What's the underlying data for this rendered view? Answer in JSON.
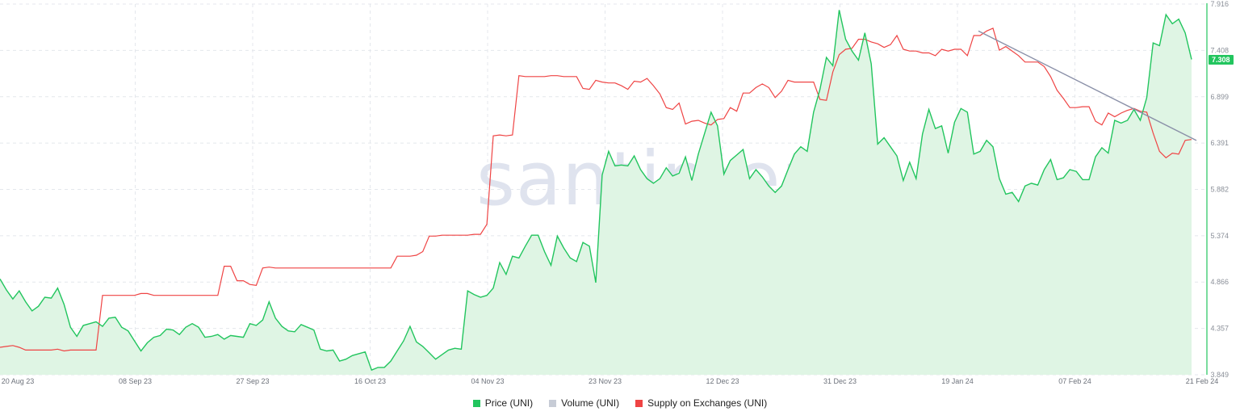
{
  "watermark": "santiment",
  "legend": [
    {
      "label": "Price (UNI)",
      "color": "#22c55e"
    },
    {
      "label": "Volume (UNI)",
      "color": "#c7ccd6"
    },
    {
      "label": "Supply on Exchanges (UNI)",
      "color": "#ef4444"
    }
  ],
  "last_price_label": "7.308",
  "chart_data": {
    "type": "line",
    "x_tick_labels": [
      "20 Aug 23",
      "08 Sep 23",
      "27 Sep 23",
      "16 Oct 23",
      "04 Nov 23",
      "23 Nov 23",
      "12 Dec 23",
      "31 Dec 23",
      "19 Jan 24",
      "07 Feb 24",
      "21 Feb 24"
    ],
    "y_tick_labels": [
      "7.916",
      "7.408",
      "6.899",
      "6.391",
      "5.882",
      "5.374",
      "4.866",
      "4.357",
      "3.849"
    ],
    "ylim": [
      3.849,
      7.916
    ],
    "grid": true,
    "legend_position": "bottom-center",
    "series": [
      {
        "name": "Price (UNI)",
        "color": "#22c55e",
        "fill": true,
        "values": [
          4.9,
          4.78,
          4.68,
          4.77,
          4.65,
          4.55,
          4.6,
          4.7,
          4.69,
          4.8,
          4.62,
          4.37,
          4.27,
          4.39,
          4.41,
          4.43,
          4.38,
          4.47,
          4.48,
          4.37,
          4.33,
          4.22,
          4.11,
          4.2,
          4.26,
          4.28,
          4.35,
          4.34,
          4.29,
          4.37,
          4.41,
          4.37,
          4.26,
          4.27,
          4.29,
          4.24,
          4.28,
          4.27,
          4.26,
          4.41,
          4.39,
          4.45,
          4.65,
          4.47,
          4.38,
          4.33,
          4.32,
          4.4,
          4.37,
          4.34,
          4.13,
          4.11,
          4.12,
          4.0,
          4.02,
          4.06,
          4.08,
          4.1,
          3.9,
          3.93,
          3.93,
          4.0,
          4.11,
          4.22,
          4.38,
          4.21,
          4.16,
          4.09,
          4.02,
          4.07,
          4.12,
          4.14,
          4.13,
          4.77,
          4.73,
          4.7,
          4.72,
          4.8,
          5.08,
          4.95,
          5.15,
          5.13,
          5.26,
          5.38,
          5.38,
          5.2,
          5.05,
          5.37,
          5.24,
          5.13,
          5.09,
          5.3,
          5.26,
          4.86,
          6.04,
          6.3,
          6.14,
          6.15,
          6.14,
          6.25,
          6.1,
          6.0,
          5.95,
          6.0,
          6.12,
          6.03,
          6.06,
          6.24,
          5.98,
          6.27,
          6.5,
          6.73,
          6.58,
          6.05,
          6.2,
          6.26,
          6.32,
          6.0,
          6.1,
          6.02,
          5.92,
          5.85,
          5.92,
          6.1,
          6.27,
          6.35,
          6.3,
          6.73,
          6.98,
          7.33,
          7.24,
          7.85,
          7.53,
          7.4,
          7.3,
          7.6,
          7.26,
          6.38,
          6.45,
          6.35,
          6.25,
          5.98,
          6.18,
          6.0,
          6.49,
          6.76,
          6.55,
          6.58,
          6.28,
          6.62,
          6.77,
          6.73,
          6.27,
          6.3,
          6.42,
          6.35,
          6.0,
          5.83,
          5.85,
          5.75,
          5.92,
          5.95,
          5.93,
          6.1,
          6.21,
          5.99,
          6.01,
          6.1,
          6.08,
          5.99,
          5.99,
          6.24,
          6.34,
          6.28,
          6.64,
          6.61,
          6.64,
          6.76,
          6.64,
          6.89,
          7.49,
          7.46,
          7.8,
          7.7,
          7.75,
          7.6,
          7.308
        ]
      },
      {
        "name": "Supply on Exchanges (UNI)",
        "color": "#ef4444",
        "fill": false,
        "values": [
          4.15,
          4.16,
          4.17,
          4.15,
          4.12,
          4.12,
          4.12,
          4.12,
          4.12,
          4.13,
          4.11,
          4.12,
          4.12,
          4.12,
          4.12,
          4.12,
          4.72,
          4.72,
          4.72,
          4.72,
          4.72,
          4.72,
          4.74,
          4.74,
          4.72,
          4.72,
          4.72,
          4.72,
          4.72,
          4.72,
          4.72,
          4.72,
          4.72,
          4.72,
          4.72,
          5.04,
          5.04,
          4.88,
          4.88,
          4.84,
          4.83,
          5.02,
          5.03,
          5.02,
          5.02,
          5.02,
          5.02,
          5.02,
          5.02,
          5.02,
          5.02,
          5.02,
          5.02,
          5.02,
          5.02,
          5.02,
          5.02,
          5.02,
          5.02,
          5.02,
          5.02,
          5.02,
          5.15,
          5.15,
          5.15,
          5.16,
          5.2,
          5.37,
          5.37,
          5.38,
          5.38,
          5.38,
          5.38,
          5.38,
          5.39,
          5.39,
          5.5,
          6.47,
          6.48,
          6.47,
          6.48,
          7.13,
          7.12,
          7.12,
          7.12,
          7.12,
          7.13,
          7.13,
          7.12,
          7.12,
          7.12,
          6.99,
          6.98,
          7.08,
          7.06,
          7.05,
          7.05,
          7.02,
          6.98,
          7.07,
          7.06,
          7.1,
          7.02,
          6.93,
          6.78,
          6.76,
          6.83,
          6.6,
          6.63,
          6.64,
          6.61,
          6.59,
          6.65,
          6.66,
          6.78,
          6.74,
          6.94,
          6.94,
          7.0,
          7.04,
          7.0,
          6.89,
          6.96,
          7.08,
          7.06,
          7.06,
          7.06,
          7.06,
          6.87,
          6.86,
          7.17,
          7.36,
          7.42,
          7.43,
          7.53,
          7.53,
          7.5,
          7.48,
          7.44,
          7.47,
          7.57,
          7.42,
          7.4,
          7.4,
          7.38,
          7.38,
          7.35,
          7.42,
          7.4,
          7.42,
          7.42,
          7.35,
          7.57,
          7.57,
          7.62,
          7.65,
          7.41,
          7.45,
          7.4,
          7.35,
          7.28,
          7.28,
          7.28,
          7.23,
          7.12,
          6.97,
          6.88,
          6.78,
          6.78,
          6.79,
          6.79,
          6.63,
          6.59,
          6.72,
          6.68,
          6.72,
          6.75,
          6.77,
          6.74,
          6.73,
          6.5,
          6.3,
          6.23,
          6.28,
          6.27,
          6.42,
          6.43
        ]
      },
      {
        "name": "",
        "color": "#8a90a8",
        "fill": false,
        "values": [
          7.62,
          6.42
        ]
      }
    ]
  }
}
